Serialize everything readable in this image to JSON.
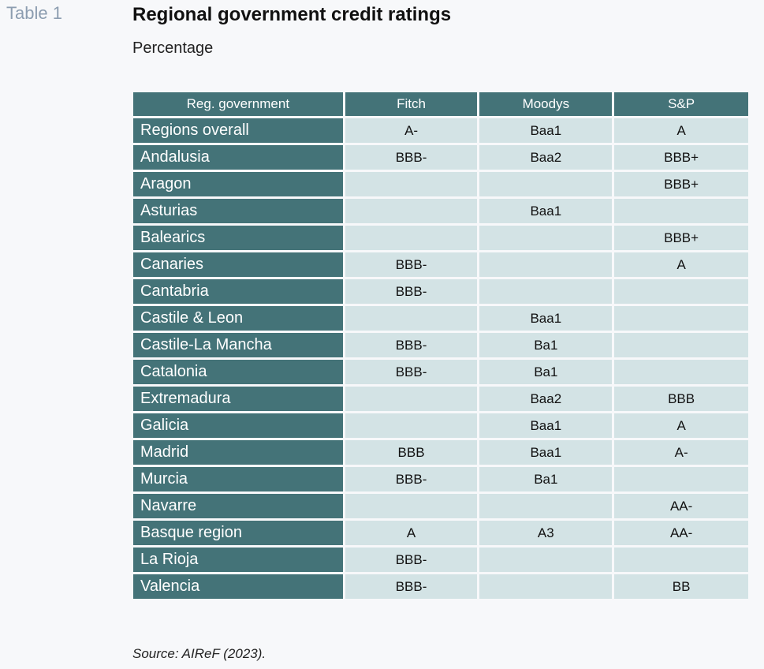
{
  "table_label": "Table 1",
  "title": "Regional government credit ratings",
  "subtitle": "Percentage",
  "colors": {
    "header_bg": "#447378",
    "cell_bg": "#d3e3e5",
    "page_bg": "#f7f8fa",
    "label_color": "#8c9db0"
  },
  "table": {
    "headers": [
      "Reg. government",
      "Fitch",
      "Moodys",
      "S&P"
    ],
    "rows": [
      [
        "Regions overall",
        "A-",
        "Baa1",
        "A"
      ],
      [
        "Andalusia",
        "BBB-",
        "Baa2",
        "BBB+"
      ],
      [
        "Aragon",
        "",
        "",
        "BBB+"
      ],
      [
        "Asturias",
        "",
        "Baa1",
        ""
      ],
      [
        "Balearics",
        "",
        "",
        "BBB+"
      ],
      [
        "Canaries",
        "BBB-",
        "",
        "A"
      ],
      [
        "Cantabria",
        "BBB-",
        "",
        ""
      ],
      [
        "Castile & Leon",
        "",
        "Baa1",
        ""
      ],
      [
        "Castile-La Mancha",
        "BBB-",
        "Ba1",
        ""
      ],
      [
        "Catalonia",
        "BBB-",
        "Ba1",
        ""
      ],
      [
        "Extremadura",
        "",
        "Baa2",
        "BBB"
      ],
      [
        "Galicia",
        "",
        "Baa1",
        "A"
      ],
      [
        "Madrid",
        "BBB",
        "Baa1",
        "A-"
      ],
      [
        "Murcia",
        "BBB-",
        "Ba1",
        ""
      ],
      [
        "Navarre",
        "",
        "",
        "AA-"
      ],
      [
        "Basque region",
        "A",
        "A3",
        "AA-"
      ],
      [
        "La Rioja",
        "BBB-",
        "",
        ""
      ],
      [
        "Valencia",
        "BBB-",
        "",
        "BB"
      ]
    ]
  },
  "source": "Source: AIReF (2023)."
}
